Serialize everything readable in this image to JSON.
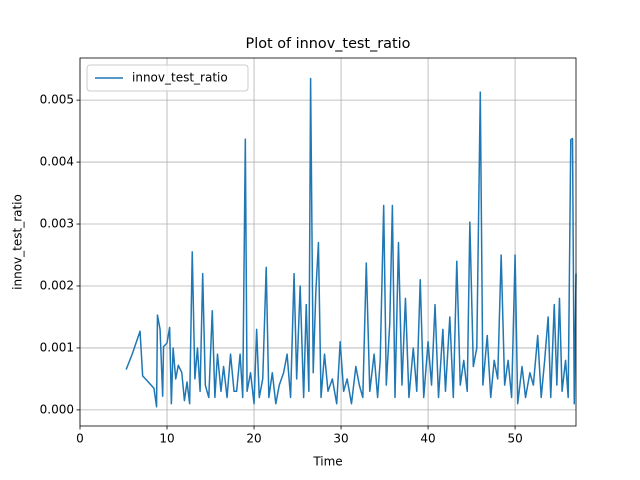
{
  "chart_data": {
    "type": "line",
    "title": "Plot of innov_test_ratio",
    "xlabel": "Time",
    "ylabel": "innov_test_ratio",
    "xlim": [
      0,
      57
    ],
    "ylim": [
      -0.00026,
      0.00568
    ],
    "xticks": [
      0,
      10,
      20,
      30,
      40,
      50
    ],
    "yticks": [
      {
        "value": 0,
        "label": "0.000"
      },
      {
        "value": 0.001,
        "label": "0.001"
      },
      {
        "value": 0.002,
        "label": "0.002"
      },
      {
        "value": 0.003,
        "label": "0.003"
      },
      {
        "value": 0.004,
        "label": "0.004"
      },
      {
        "value": 0.005,
        "label": "0.005"
      }
    ],
    "grid": true,
    "legend": "upper left",
    "x": [
      5.3,
      6.0,
      6.9,
      7.2,
      8.5,
      8.8,
      8.9,
      9.2,
      9.5,
      9.6,
      10.0,
      10.3,
      10.5,
      10.7,
      11.0,
      11.3,
      11.7,
      12.0,
      12.3,
      12.6,
      12.9,
      13.2,
      13.5,
      13.8,
      14.1,
      14.4,
      14.8,
      15.2,
      15.5,
      15.8,
      16.2,
      16.5,
      16.9,
      17.3,
      17.7,
      18.0,
      18.4,
      18.7,
      19.0,
      19.2,
      19.6,
      20.0,
      20.3,
      20.6,
      21.0,
      21.4,
      21.7,
      22.1,
      22.5,
      22.9,
      23.4,
      23.8,
      24.2,
      24.6,
      24.9,
      25.3,
      25.7,
      26.0,
      26.3,
      26.5,
      26.8,
      27.1,
      27.4,
      27.7,
      28.1,
      28.5,
      29.0,
      29.5,
      29.9,
      30.3,
      30.7,
      31.2,
      31.7,
      32.1,
      32.5,
      32.9,
      33.3,
      33.8,
      34.2,
      34.5,
      34.9,
      35.2,
      35.6,
      35.9,
      36.2,
      36.6,
      37.0,
      37.4,
      37.8,
      38.3,
      38.7,
      39.1,
      39.5,
      40.0,
      40.4,
      40.8,
      41.2,
      41.7,
      42.0,
      42.5,
      42.9,
      43.3,
      43.7,
      44.1,
      44.5,
      44.8,
      45.2,
      45.6,
      46.0,
      46.3,
      46.8,
      47.2,
      47.6,
      48.0,
      48.4,
      48.8,
      49.2,
      49.6,
      50.0,
      50.3,
      50.8,
      51.2,
      51.7,
      52.1,
      52.6,
      53.0,
      53.4,
      53.8,
      54.1,
      54.5,
      54.8,
      55.1,
      55.4,
      55.8,
      56.1,
      56.4,
      56.6,
      56.8,
      57.0
    ],
    "series": [
      {
        "name": "innov_test_ratio",
        "color": "#1f77b4",
        "values": [
          0.00065,
          0.0009,
          0.00127,
          0.00055,
          0.00035,
          5e-05,
          0.00153,
          0.0013,
          0.00022,
          0.00102,
          0.00108,
          0.00133,
          0.0001,
          0.001,
          0.0005,
          0.00072,
          0.0006,
          0.00015,
          0.00045,
          0.0001,
          0.00255,
          0.0005,
          0.001,
          0.0003,
          0.0022,
          0.0004,
          0.0002,
          0.0016,
          0.0002,
          0.0009,
          0.0003,
          0.0007,
          0.0002,
          0.0009,
          0.0003,
          0.0003,
          0.0009,
          0.0002,
          0.00437,
          0.0003,
          0.0006,
          0.0001,
          0.0013,
          0.0002,
          0.0005,
          0.0023,
          0.0002,
          0.0006,
          0.0001,
          0.0004,
          0.0006,
          0.0009,
          0.0002,
          0.0022,
          0.0005,
          0.002,
          0.0002,
          0.0017,
          0.0003,
          0.00535,
          0.0006,
          0.0019,
          0.0027,
          0.0002,
          0.0009,
          0.0003,
          0.0005,
          0.0001,
          0.0011,
          0.0003,
          0.0005,
          0.0001,
          0.0007,
          0.0004,
          0.0002,
          0.00237,
          0.0003,
          0.0009,
          0.0002,
          0.0008,
          0.0033,
          0.0004,
          0.0014,
          0.0033,
          0.0002,
          0.0027,
          0.0004,
          0.0018,
          0.0002,
          0.001,
          0.0003,
          0.0021,
          0.0002,
          0.0011,
          0.0004,
          0.0017,
          0.0002,
          0.0013,
          0.0003,
          0.0015,
          0.0002,
          0.0024,
          0.0004,
          0.0008,
          0.0003,
          0.00303,
          0.0007,
          0.001,
          0.00513,
          0.0004,
          0.0012,
          0.0002,
          0.0008,
          0.0005,
          0.0025,
          0.0004,
          0.0008,
          0.0002,
          0.0025,
          0.0001,
          0.0007,
          0.0002,
          0.0006,
          0.0004,
          0.0012,
          0.0002,
          0.0008,
          0.0015,
          0.0002,
          0.0017,
          0.0004,
          0.0018,
          0.0003,
          0.0008,
          0.0002,
          0.00436,
          0.00438,
          0.0001,
          0.0022
        ]
      }
    ]
  }
}
